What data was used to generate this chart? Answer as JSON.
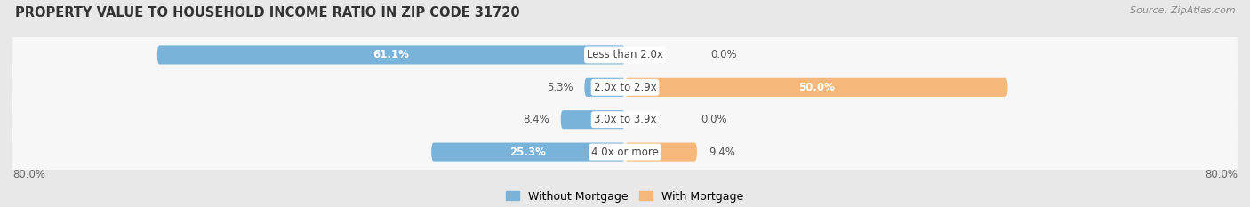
{
  "title": "PROPERTY VALUE TO HOUSEHOLD INCOME RATIO IN ZIP CODE 31720",
  "source": "Source: ZipAtlas.com",
  "categories": [
    "Less than 2.0x",
    "2.0x to 2.9x",
    "3.0x to 3.9x",
    "4.0x or more"
  ],
  "without_mortgage": [
    61.1,
    5.3,
    8.4,
    25.3
  ],
  "with_mortgage": [
    0.0,
    50.0,
    0.0,
    9.4
  ],
  "color_without": "#7ab3d9",
  "color_with": "#f5b87a",
  "axis_min": -80.0,
  "axis_max": 80.0,
  "axis_label_left": "80.0%",
  "axis_label_right": "80.0%",
  "legend_without": "Without Mortgage",
  "legend_with": "With Mortgage",
  "bg_color": "#e8e8e8",
  "row_bg_color": "#f0f0f0",
  "title_fontsize": 10.5,
  "source_fontsize": 8,
  "label_fontsize": 8.5,
  "cat_fontsize": 8.5
}
